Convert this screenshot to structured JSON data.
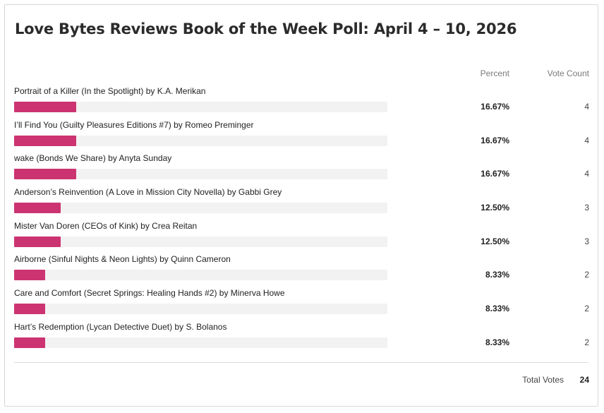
{
  "poll": {
    "title": "Love Bytes Reviews Book of the Week Poll: April 4 – 10, 2026",
    "headers": {
      "percent": "Percent",
      "vote_count": "Vote Count"
    },
    "bar_color": "#cc3471",
    "options": [
      {
        "label": "Portrait of a Killer (In the Spotlight) by K.A. Merikan",
        "percent_text": "16.67%",
        "percent": 16.67,
        "votes": "4"
      },
      {
        "label": "I’ll Find You (Guilty Pleasures Editions #7) by Romeo Preminger",
        "percent_text": "16.67%",
        "percent": 16.67,
        "votes": "4"
      },
      {
        "label": "wake (Bonds We Share) by Anyta Sunday",
        "percent_text": "16.67%",
        "percent": 16.67,
        "votes": "4"
      },
      {
        "label": "Anderson’s Reinvention (A Love in Mission City Novella) by Gabbi Grey",
        "percent_text": "12.50%",
        "percent": 12.5,
        "votes": "3"
      },
      {
        "label": "Mister Van Doren (CEOs of Kink) by Crea Reitan",
        "percent_text": "12.50%",
        "percent": 12.5,
        "votes": "3"
      },
      {
        "label": "Airborne (Sinful Nights & Neon Lights) by Quinn Cameron",
        "percent_text": "8.33%",
        "percent": 8.33,
        "votes": "2"
      },
      {
        "label": "Care and Comfort (Secret Springs: Healing Hands #2) by Minerva Howe",
        "percent_text": "8.33%",
        "percent": 8.33,
        "votes": "2"
      },
      {
        "label": "Hart’s Redemption (Lycan Detective Duet) by S. Bolanos",
        "percent_text": "8.33%",
        "percent": 8.33,
        "votes": "2"
      }
    ],
    "total": {
      "label": "Total Votes",
      "value": "24"
    }
  }
}
